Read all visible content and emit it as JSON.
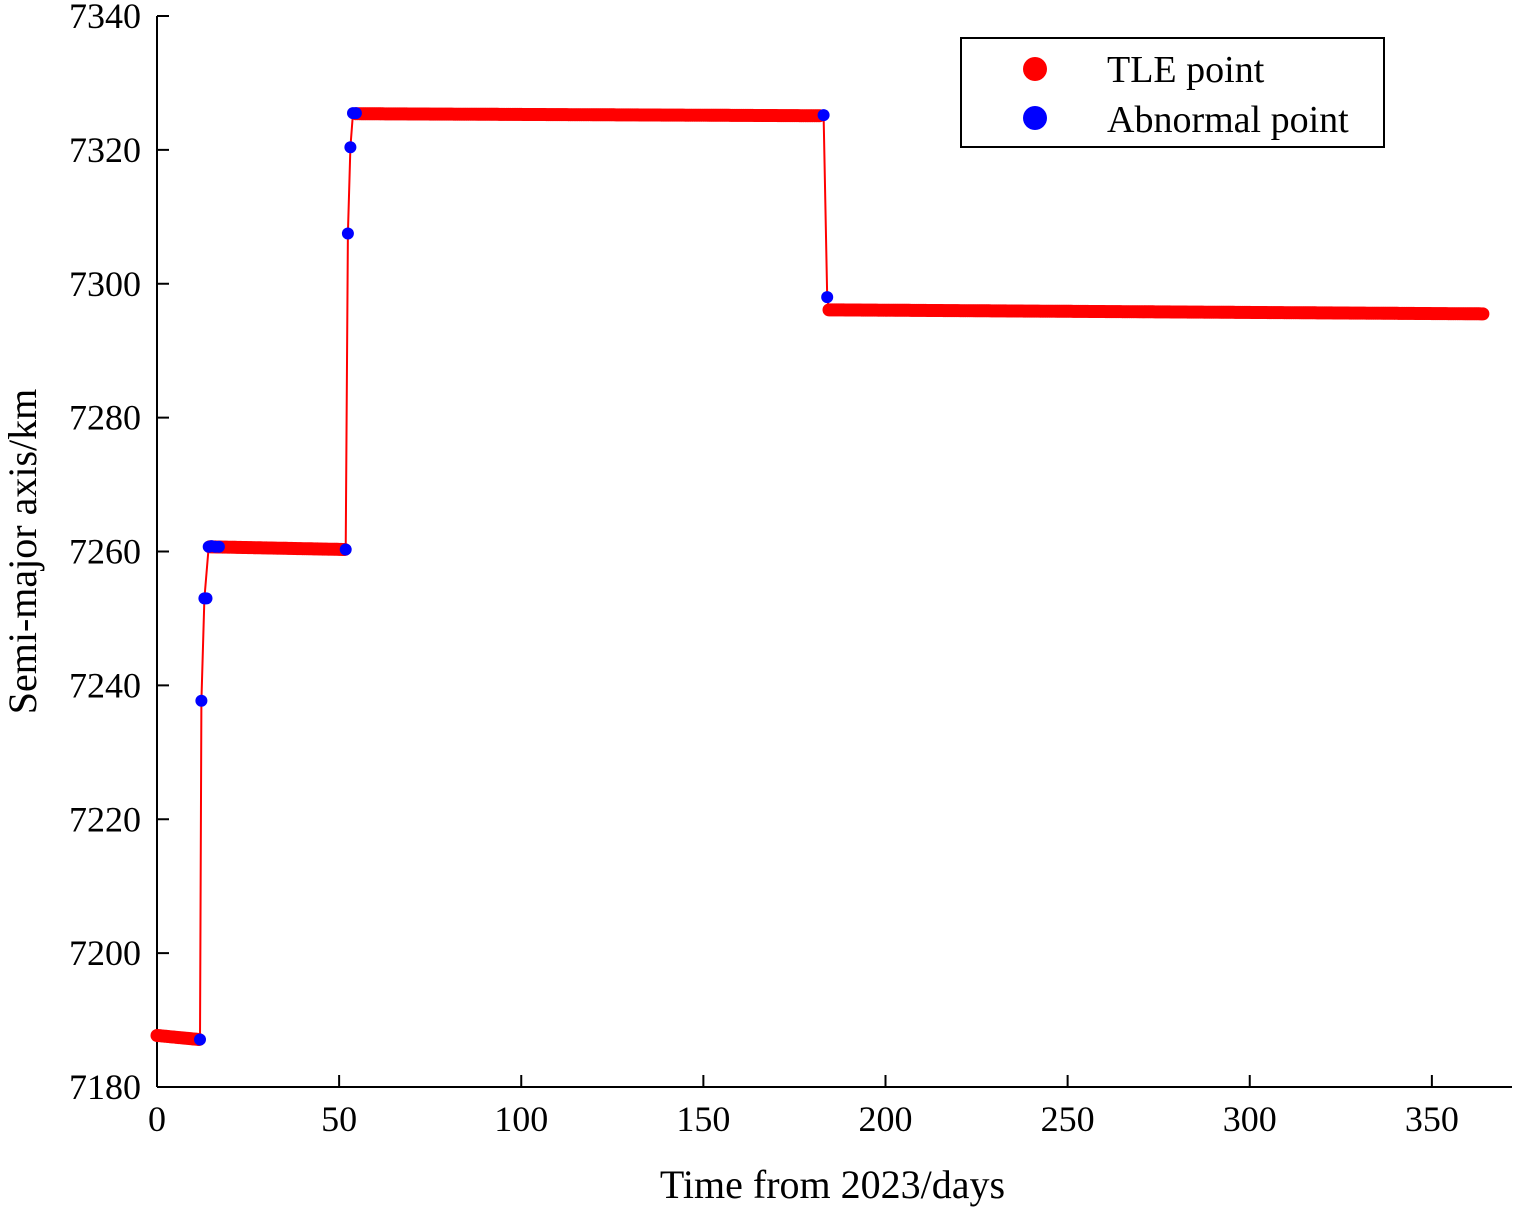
{
  "chart_data": {
    "type": "scatter",
    "title": "",
    "xlabel": "Time from 2023/days",
    "ylabel": "Semi-major axis/km",
    "xlim": [
      0,
      372
    ],
    "ylim": [
      7180,
      7340
    ],
    "xticks": [
      0,
      50,
      100,
      150,
      200,
      250,
      300,
      350
    ],
    "yticks": [
      7180,
      7200,
      7220,
      7240,
      7260,
      7280,
      7300,
      7320,
      7340
    ],
    "grid": false,
    "legend_position": "top-right",
    "colors": {
      "tle": "#ff0000",
      "abnormal": "#0000ff",
      "line": "#ff0000",
      "axis": "#000000"
    },
    "series": [
      {
        "name": "TLE point",
        "color": "#ff0000",
        "segments": [
          {
            "x_start": 0,
            "x_end": 11.5,
            "y_start": 7187.7,
            "y_end": 7187.1
          },
          {
            "x_start": 14.5,
            "x_end": 51.5,
            "y_start": 7260.7,
            "y_end": 7260.3
          },
          {
            "x_start": 54.5,
            "x_end": 182,
            "y_start": 7325.4,
            "y_end": 7325.1
          },
          {
            "x_start": 184.5,
            "x_end": 364,
            "y_start": 7296.1,
            "y_end": 7295.5
          }
        ]
      },
      {
        "name": "Abnormal point",
        "color": "#0000ff",
        "points": [
          {
            "x": 11.8,
            "y": 7187.1
          },
          {
            "x": 12.2,
            "y": 7237.7
          },
          {
            "x": 13.0,
            "y": 7253.0
          },
          {
            "x": 13.6,
            "y": 7253.0
          },
          {
            "x": 14.2,
            "y": 7260.7
          },
          {
            "x": 15.0,
            "y": 7260.8
          },
          {
            "x": 16.0,
            "y": 7260.7
          },
          {
            "x": 17.0,
            "y": 7260.7
          },
          {
            "x": 51.8,
            "y": 7260.3
          },
          {
            "x": 52.4,
            "y": 7307.5
          },
          {
            "x": 53.1,
            "y": 7320.4
          },
          {
            "x": 53.8,
            "y": 7325.5
          },
          {
            "x": 54.6,
            "y": 7325.5
          },
          {
            "x": 183.0,
            "y": 7325.2
          },
          {
            "x": 184.0,
            "y": 7298.0
          }
        ]
      }
    ],
    "line_path": [
      {
        "x": 0,
        "y": 7187.7
      },
      {
        "x": 11.5,
        "y": 7187.1
      },
      {
        "x": 11.8,
        "y": 7187.1
      },
      {
        "x": 12.2,
        "y": 7237.7
      },
      {
        "x": 13.0,
        "y": 7253.0
      },
      {
        "x": 14.2,
        "y": 7260.7
      },
      {
        "x": 51.5,
        "y": 7260.3
      },
      {
        "x": 51.8,
        "y": 7260.3
      },
      {
        "x": 52.4,
        "y": 7307.5
      },
      {
        "x": 53.1,
        "y": 7320.4
      },
      {
        "x": 53.8,
        "y": 7325.5
      },
      {
        "x": 182,
        "y": 7325.1
      },
      {
        "x": 183.0,
        "y": 7325.2
      },
      {
        "x": 184.0,
        "y": 7298.0
      },
      {
        "x": 184.5,
        "y": 7296.1
      },
      {
        "x": 364,
        "y": 7295.5
      }
    ]
  }
}
